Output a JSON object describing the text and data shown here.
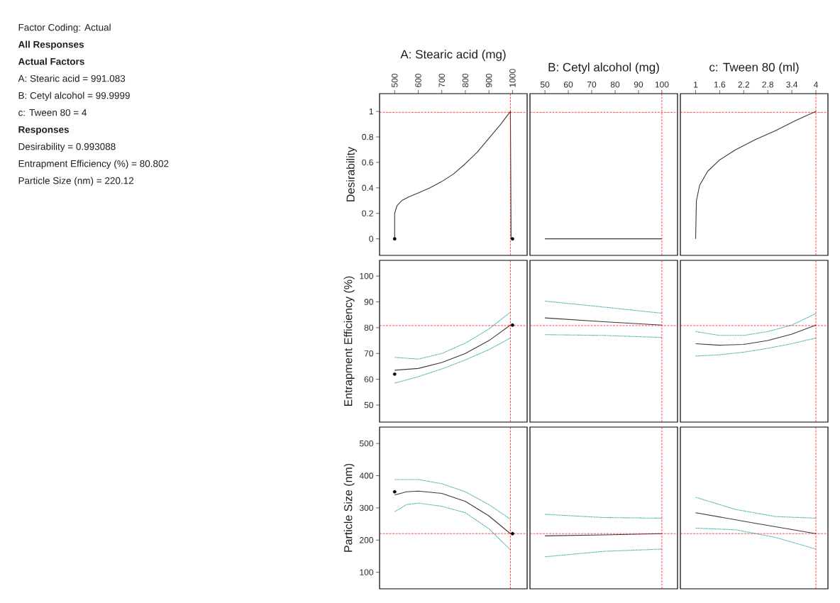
{
  "chart_data": [
    {
      "type": "line",
      "xlabel": "A: Stearic acid  (mg)",
      "ylabel": "Desirability",
      "xlim": [
        436,
        1062
      ],
      "ylim": [
        -0.13,
        1.14
      ],
      "xticks": [
        500,
        600,
        700,
        800,
        900,
        1000
      ],
      "yticks": [
        0,
        0.2,
        0.4,
        0.6,
        0.8,
        1
      ],
      "series": [
        {
          "color": "#3a3a3a",
          "x": [
            500,
            500,
            510,
            530,
            560,
            600,
            650,
            700,
            750,
            800,
            850,
            900,
            950,
            991,
            994
          ],
          "values": [
            0,
            0.2,
            0.26,
            0.3,
            0.33,
            0.36,
            0.4,
            0.45,
            0.51,
            0.59,
            0.68,
            0.79,
            0.9,
            1,
            0
          ]
        },
        {
          "type": "scatter",
          "marker": "circle",
          "color": "#000000",
          "x": [
            500,
            1000
          ],
          "values": [
            0,
            0
          ]
        }
      ],
      "ref_lines": [
        {
          "axis": "x",
          "value": 991.083,
          "color": "#ff0000",
          "line_style": "dashed"
        },
        {
          "axis": "y",
          "value": 0.993088,
          "color": "#ff0000",
          "line_style": "dashed"
        }
      ],
      "annotations": [
        "Factor Coding: Actual",
        "**All Responses**",
        "**Actual Factors**",
        "A: Stearic acid = 991.083",
        "B: Cetyl alcohol = 99.9999",
        "c: Tween 80 = 4",
        "**Responses**",
        "Desirability = 0.993088",
        "Entrapment Efficiency (%) = 80.802",
        "Particle Size (nm) = 220.12"
      ]
    },
    {
      "type": "line",
      "xlabel": "B: Cetyl alcohol  (mg)",
      "xlim": [
        43.6,
        106.7
      ],
      "ylim": [
        -0.13,
        1.14
      ],
      "xticks": [
        50,
        60,
        70,
        80,
        90,
        100
      ],
      "tick_labels": "x",
      "series": [
        {
          "color": "#3a3a3a",
          "x": [
            50,
            100
          ],
          "values": [
            0,
            0
          ]
        }
      ],
      "ref_lines": [
        {
          "axis": "x",
          "value": 99.9999,
          "color": "#ff0000",
          "line_style": "dashed"
        },
        {
          "axis": "y",
          "value": 0.993088,
          "color": "#ff0000",
          "line_style": "dashed"
        }
      ]
    },
    {
      "type": "line",
      "xlabel": "c: Tween 80  (ml)",
      "xlim": [
        0.62,
        4.3
      ],
      "ylim": [
        -0.13,
        1.14
      ],
      "xticks": [
        1,
        1.6,
        2.2,
        2.8,
        3.4,
        4
      ],
      "tick_labels": "x",
      "series": [
        {
          "color": "#3a3a3a",
          "x": [
            1,
            1.02,
            1.1,
            1.3,
            1.6,
            2.0,
            2.5,
            3.0,
            3.5,
            4
          ],
          "values": [
            0,
            0.3,
            0.42,
            0.53,
            0.62,
            0.7,
            0.78,
            0.85,
            0.93,
            1
          ]
        }
      ],
      "ref_lines": [
        {
          "axis": "x",
          "value": 4,
          "color": "#ff0000",
          "line_style": "dashed"
        },
        {
          "axis": "y",
          "value": 0.993088,
          "color": "#ff0000",
          "line_style": "dashed"
        }
      ]
    },
    {
      "type": "line",
      "ylabel": "Entrapment Efficiency (%)",
      "xlim": [
        436,
        1062
      ],
      "ylim": [
        43.4,
        106.1
      ],
      "yticks": [
        50,
        60,
        70,
        80,
        90,
        100
      ],
      "tick_labels": "y",
      "series": [
        {
          "color": "#2fa8a8",
          "line_style": "dotted",
          "x": [
            500,
            600,
            700,
            800,
            900,
            991
          ],
          "values": [
            68.5,
            67.8,
            70,
            74,
            79.5,
            86
          ]
        },
        {
          "color": "#2fa8a8",
          "line_style": "dotted",
          "x": [
            500,
            600,
            700,
            800,
            900,
            991
          ],
          "values": [
            58.5,
            61,
            64,
            67.5,
            71.5,
            76
          ]
        },
        {
          "color": "#3a3a3a",
          "x": [
            500,
            600,
            700,
            800,
            900,
            991
          ],
          "values": [
            63.5,
            64.2,
            66.5,
            70,
            75,
            81
          ]
        },
        {
          "type": "scatter",
          "marker": "circle",
          "color": "#000000",
          "x": [
            500,
            1000
          ],
          "values": [
            62,
            81
          ]
        }
      ],
      "ref_lines": [
        {
          "axis": "x",
          "value": 991.083,
          "color": "#ff0000",
          "line_style": "dashed"
        },
        {
          "axis": "y",
          "value": 80.802,
          "color": "#ff0000",
          "line_style": "dashed"
        }
      ]
    },
    {
      "type": "line",
      "xlim": [
        43.6,
        106.7
      ],
      "ylim": [
        43.4,
        106.1
      ],
      "tick_labels": false,
      "series": [
        {
          "color": "#2fa8a8",
          "line_style": "dotted",
          "x": [
            50,
            75,
            100
          ],
          "values": [
            90.3,
            88,
            85.6
          ]
        },
        {
          "color": "#2fa8a8",
          "line_style": "dotted",
          "x": [
            50,
            75,
            100
          ],
          "values": [
            77.3,
            77,
            76.2
          ]
        },
        {
          "color": "#3a3a3a",
          "x": [
            50,
            75,
            100
          ],
          "values": [
            83.8,
            82.3,
            81
          ]
        }
      ],
      "ref_lines": [
        {
          "axis": "x",
          "value": 99.9999,
          "color": "#ff0000",
          "line_style": "dashed"
        },
        {
          "axis": "y",
          "value": 80.802,
          "color": "#ff0000",
          "line_style": "dashed"
        }
      ]
    },
    {
      "type": "line",
      "xlim": [
        0.62,
        4.3
      ],
      "ylim": [
        43.4,
        106.1
      ],
      "tick_labels": false,
      "series": [
        {
          "color": "#2fa8a8",
          "line_style": "dotted",
          "x": [
            1,
            1.6,
            2.2,
            2.8,
            3.4,
            4
          ],
          "values": [
            78.5,
            77,
            77,
            78.5,
            81,
            85.5
          ]
        },
        {
          "color": "#2fa8a8",
          "line_style": "dotted",
          "x": [
            1,
            1.6,
            2.2,
            2.8,
            3.4,
            4
          ],
          "values": [
            69,
            69.5,
            70.5,
            72,
            73.8,
            76
          ]
        },
        {
          "color": "#3a3a3a",
          "x": [
            1,
            1.6,
            2.2,
            2.8,
            3.4,
            4
          ],
          "values": [
            73.8,
            73.2,
            73.5,
            75,
            77.5,
            81
          ]
        }
      ],
      "ref_lines": [
        {
          "axis": "x",
          "value": 4,
          "color": "#ff0000",
          "line_style": "dashed"
        },
        {
          "axis": "y",
          "value": 80.802,
          "color": "#ff0000",
          "line_style": "dashed"
        }
      ]
    },
    {
      "type": "line",
      "ylabel": "Particle Size  (nm)",
      "xlim": [
        436,
        1062
      ],
      "ylim": [
        48.7,
        551
      ],
      "yticks": [
        100,
        200,
        300,
        400,
        500
      ],
      "tick_labels": "y",
      "series": [
        {
          "color": "#2fa8a8",
          "line_style": "dotted",
          "x": [
            500,
            600,
            700,
            800,
            900,
            991
          ],
          "values": [
            388,
            388,
            375,
            350,
            310,
            265
          ]
        },
        {
          "color": "#2fa8a8",
          "line_style": "dotted",
          "x": [
            500,
            550,
            600,
            700,
            800,
            900,
            991
          ],
          "values": [
            288,
            310,
            315,
            305,
            285,
            235,
            170
          ]
        },
        {
          "color": "#3a3a3a",
          "x": [
            500,
            550,
            600,
            700,
            800,
            900,
            991
          ],
          "values": [
            340,
            350,
            352,
            345,
            320,
            275,
            220
          ]
        },
        {
          "type": "scatter",
          "marker": "circle",
          "color": "#000000",
          "x": [
            500,
            1000
          ],
          "values": [
            350,
            220
          ]
        }
      ],
      "ref_lines": [
        {
          "axis": "x",
          "value": 991.083,
          "color": "#ff0000",
          "line_style": "dashed"
        },
        {
          "axis": "y",
          "value": 220.12,
          "color": "#ff0000",
          "line_style": "dashed"
        }
      ]
    },
    {
      "type": "line",
      "xlim": [
        43.6,
        106.7
      ],
      "ylim": [
        48.7,
        551
      ],
      "tick_labels": false,
      "series": [
        {
          "color": "#2fa8a8",
          "line_style": "dotted",
          "x": [
            50,
            75,
            100
          ],
          "values": [
            280,
            270,
            268
          ]
        },
        {
          "color": "#2fa8a8",
          "line_style": "dotted",
          "x": [
            50,
            75,
            100
          ],
          "values": [
            148,
            165,
            172
          ]
        },
        {
          "color": "#3a3a3a",
          "x": [
            50,
            75,
            100
          ],
          "values": [
            213,
            216,
            220
          ]
        }
      ],
      "ref_lines": [
        {
          "axis": "x",
          "value": 99.9999,
          "color": "#ff0000",
          "line_style": "dashed"
        },
        {
          "axis": "y",
          "value": 220.12,
          "color": "#ff0000",
          "line_style": "dashed"
        }
      ]
    },
    {
      "type": "line",
      "xlim": [
        0.62,
        4.3
      ],
      "ylim": [
        48.7,
        551
      ],
      "tick_labels": false,
      "series": [
        {
          "color": "#2fa8a8",
          "line_style": "dotted",
          "x": [
            1,
            2,
            3,
            4
          ],
          "values": [
            333,
            295,
            273,
            268
          ]
        },
        {
          "color": "#2fa8a8",
          "line_style": "dotted",
          "x": [
            1,
            2,
            3,
            4
          ],
          "values": [
            237,
            232,
            208,
            172
          ]
        },
        {
          "color": "#3a3a3a",
          "x": [
            1,
            2.5,
            4
          ],
          "values": [
            285,
            252,
            220
          ]
        }
      ],
      "ref_lines": [
        {
          "axis": "x",
          "value": 4,
          "color": "#ff0000",
          "line_style": "dashed"
        },
        {
          "axis": "y",
          "value": 220.12,
          "color": "#ff0000",
          "line_style": "dashed"
        }
      ]
    }
  ]
}
